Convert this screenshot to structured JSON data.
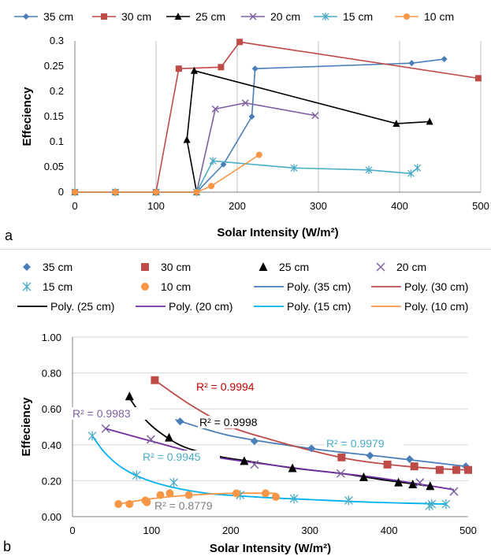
{
  "chart_data": [
    {
      "panel": "a",
      "type": "line",
      "title": "",
      "xlabel": "Solar Intensity (W/m²)",
      "ylabel": "Effeciency",
      "xlim": [
        0,
        500
      ],
      "ylim": [
        0,
        0.3
      ],
      "xticks": [
        0,
        100,
        200,
        300,
        400,
        500
      ],
      "yticks": [
        0,
        0.05,
        0.1,
        0.15,
        0.2,
        0.25,
        0.3
      ],
      "xtick_labels": [
        "0",
        "100",
        "200",
        "300",
        "400",
        "500"
      ],
      "ytick_labels": [
        "0",
        "0.05",
        "0.1",
        "0.15",
        "0.2",
        "0.25",
        "0.3"
      ],
      "grid": "vertical",
      "legend_position": "top",
      "series": [
        {
          "name": "35 cm",
          "color": "#4a7ebb",
          "marker": "diamond",
          "points": [
            [
              0,
              0
            ],
            [
              50,
              0
            ],
            [
              100,
              0
            ],
            [
              150,
              0
            ],
            [
              183,
              0.055
            ],
            [
              218,
              0.15
            ],
            [
              222,
              0.245
            ],
            [
              415,
              0.256
            ],
            [
              455,
              0.264
            ]
          ]
        },
        {
          "name": "30 cm",
          "color": "#be4b48",
          "marker": "square",
          "points": [
            [
              0,
              0
            ],
            [
              50,
              0
            ],
            [
              100,
              0
            ],
            [
              128,
              0.245
            ],
            [
              180,
              0.248
            ],
            [
              203,
              0.298
            ],
            [
              497,
              0.226
            ]
          ]
        },
        {
          "name": "25 cm",
          "color": "#000000",
          "marker": "triangle",
          "points": [
            [
              0,
              0
            ],
            [
              50,
              0
            ],
            [
              100,
              0
            ],
            [
              150,
              0
            ],
            [
              138,
              0.104
            ],
            [
              147,
              0.241
            ],
            [
              396,
              0.136
            ],
            [
              437,
              0.14
            ]
          ]
        },
        {
          "name": "20 cm",
          "color": "#7d60a0",
          "marker": "x",
          "points": [
            [
              0,
              0
            ],
            [
              50,
              0
            ],
            [
              100,
              0
            ],
            [
              150,
              0
            ],
            [
              173,
              0.165
            ],
            [
              210,
              0.177
            ],
            [
              296,
              0.152
            ]
          ]
        },
        {
          "name": "15 cm",
          "color": "#4bacc6",
          "marker": "asterisk",
          "points": [
            [
              0,
              0
            ],
            [
              50,
              0
            ],
            [
              100,
              0
            ],
            [
              150,
              0
            ],
            [
              170,
              0.062
            ],
            [
              270,
              0.048
            ],
            [
              362,
              0.044
            ],
            [
              414,
              0.037
            ],
            [
              422,
              0.048
            ]
          ]
        },
        {
          "name": "10 cm",
          "color": "#f79646",
          "marker": "circle",
          "points": [
            [
              0,
              0
            ],
            [
              50,
              0
            ],
            [
              100,
              0
            ],
            [
              150,
              0
            ],
            [
              168,
              0.012
            ],
            [
              227,
              0.074
            ]
          ]
        }
      ]
    },
    {
      "panel": "b",
      "type": "scatter",
      "title": "",
      "xlabel": "Solar Intensity (W/m²)",
      "ylabel": "Effeciency",
      "xlim": [
        0,
        500
      ],
      "ylim": [
        0,
        1.0
      ],
      "xticks": [
        0,
        100,
        200,
        300,
        400,
        500
      ],
      "yticks": [
        0,
        0.2,
        0.4,
        0.6,
        0.8,
        1.0
      ],
      "xtick_labels": [
        "0",
        "100",
        "200",
        "300",
        "400",
        "500"
      ],
      "ytick_labels": [
        "0.00",
        "0.20",
        "0.40",
        "0.60",
        "0.80",
        "1.00"
      ],
      "grid": "horizontal",
      "legend_position": "top",
      "series": [
        {
          "name": "35 cm",
          "color": "#4a7ebb",
          "marker": "diamond",
          "points": [
            [
              136,
              0.53
            ],
            [
              230,
              0.42
            ],
            [
              302,
              0.38
            ],
            [
              376,
              0.34
            ],
            [
              426,
              0.32
            ],
            [
              497,
              0.28
            ]
          ]
        },
        {
          "name": "30 cm",
          "color": "#be4b48",
          "marker": "square",
          "points": [
            [
              104,
              0.76
            ],
            [
              197,
              0.51
            ],
            [
              340,
              0.33
            ],
            [
              398,
              0.29
            ],
            [
              432,
              0.28
            ],
            [
              464,
              0.26
            ],
            [
              485,
              0.26
            ],
            [
              500,
              0.26
            ]
          ]
        },
        {
          "name": "25 cm",
          "color": "#000000",
          "marker": "triangle",
          "points": [
            [
              72,
              0.67
            ],
            [
              122,
              0.44
            ],
            [
              217,
              0.31
            ],
            [
              278,
              0.27
            ],
            [
              368,
              0.22
            ],
            [
              412,
              0.19
            ],
            [
              430,
              0.18
            ],
            [
              452,
              0.17
            ]
          ]
        },
        {
          "name": "20 cm",
          "color": "#7d60a0",
          "marker": "x",
          "points": [
            [
              42,
              0.49
            ],
            [
              99,
              0.43
            ],
            [
              172,
              0.34
            ],
            [
              230,
              0.29
            ],
            [
              339,
              0.24
            ],
            [
              439,
              0.19
            ],
            [
              482,
              0.14
            ]
          ]
        },
        {
          "name": "15 cm",
          "color": "#4bacc6",
          "marker": "asterisk",
          "points": [
            [
              25,
              0.45
            ],
            [
              81,
              0.23
            ],
            [
              128,
              0.19
            ],
            [
              212,
              0.12
            ],
            [
              280,
              0.1
            ],
            [
              349,
              0.09
            ],
            [
              451,
              0.06
            ],
            [
              454,
              0.07
            ],
            [
              472,
              0.07
            ]
          ]
        },
        {
          "name": "10 cm",
          "color": "#f79646",
          "marker": "circle",
          "points": [
            [
              58,
              0.07
            ],
            [
              72,
              0.07
            ],
            [
              92,
              0.09
            ],
            [
              94,
              0.08
            ],
            [
              111,
              0.12
            ],
            [
              123,
              0.13
            ],
            [
              147,
              0.12
            ],
            [
              207,
              0.13
            ],
            [
              244,
              0.13
            ],
            [
              257,
              0.11
            ]
          ]
        }
      ],
      "trendlines": [
        {
          "name": "Poly. (35 cm)",
          "color": "#4a7ebb",
          "r2": "R² = 0.9979",
          "points": [
            [
              130,
              0.54
            ],
            [
              200,
              0.45
            ],
            [
              300,
              0.38
            ],
            [
              400,
              0.33
            ],
            [
              497,
              0.28
            ]
          ]
        },
        {
          "name": "Poly. (30 cm)",
          "color": "#be4b48",
          "r2": "R² = 0.9994",
          "points": [
            [
              104,
              0.76
            ],
            [
              150,
              0.62
            ],
            [
              200,
              0.5
            ],
            [
              250,
              0.43
            ],
            [
              300,
              0.37
            ],
            [
              350,
              0.32
            ],
            [
              400,
              0.29
            ],
            [
              450,
              0.27
            ],
            [
              500,
              0.26
            ]
          ]
        },
        {
          "name": "Poly. (25 cm)",
          "color": "#000000",
          "r2": "R² = 0.9998",
          "points": [
            [
              72,
              0.66
            ],
            [
              90,
              0.55
            ],
            [
              110,
              0.47
            ],
            [
              140,
              0.39
            ],
            [
              180,
              0.34
            ],
            [
              220,
              0.31
            ],
            [
              280,
              0.27
            ],
            [
              340,
              0.24
            ],
            [
              400,
              0.2
            ],
            [
              452,
              0.17
            ]
          ]
        },
        {
          "name": "Poly. (20 cm)",
          "color": "#7030a0",
          "r2": "R² = 0.9983",
          "points": [
            [
              42,
              0.49
            ],
            [
              100,
              0.42
            ],
            [
              170,
              0.34
            ],
            [
              230,
              0.3
            ],
            [
              300,
              0.26
            ],
            [
              380,
              0.22
            ],
            [
              440,
              0.18
            ],
            [
              482,
              0.15
            ]
          ]
        },
        {
          "name": "Poly. (15 cm)",
          "color": "#00b0f0",
          "r2": "R² = 0.9945",
          "points": [
            [
              25,
              0.45
            ],
            [
              40,
              0.36
            ],
            [
              60,
              0.28
            ],
            [
              85,
              0.22
            ],
            [
              120,
              0.17
            ],
            [
              170,
              0.13
            ],
            [
              230,
              0.11
            ],
            [
              300,
              0.095
            ],
            [
              380,
              0.08
            ],
            [
              472,
              0.07
            ]
          ]
        },
        {
          "name": "Poly. (10 cm)",
          "color": "#f79646",
          "r2": "R² = 0.8779",
          "points": [
            [
              58,
              0.07
            ],
            [
              100,
              0.1
            ],
            [
              150,
              0.12
            ],
            [
              200,
              0.13
            ],
            [
              257,
              0.13
            ]
          ]
        }
      ]
    }
  ],
  "panel_a": {
    "letter": "a",
    "xlabel": "Solar Intensity (W/m²)",
    "ylabel": "Effeciency",
    "legend": [
      "35 cm",
      "30 cm",
      "25 cm",
      "20 cm",
      "15 cm",
      "10 cm"
    ]
  },
  "panel_b": {
    "letter": "b",
    "xlabel": "Solar Intensity (W/m²)",
    "ylabel": "Effeciency",
    "legend": [
      "35 cm",
      "30 cm",
      "25 cm",
      "20 cm",
      "15 cm",
      "10 cm",
      "Poly. (35 cm)",
      "Poly. (30 cm)",
      "Poly. (25 cm)",
      "Poly. (20 cm)",
      "Poly. (15 cm)",
      "Poly. (10 cm)"
    ]
  }
}
